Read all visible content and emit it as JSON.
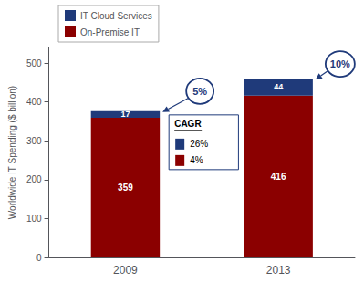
{
  "chart_data": {
    "type": "bar",
    "categories": [
      "2009",
      "2013"
    ],
    "series": [
      {
        "name": "On-Premise IT",
        "color": "#8B0000",
        "values": [
          359,
          416
        ]
      },
      {
        "name": "IT Cloud Services",
        "color": "#1F3A7A",
        "values": [
          17,
          44
        ]
      }
    ],
    "stacked": true,
    "data_labels": true,
    "ylabel": "Worldwide IT Spending ($ billion)",
    "ylim": [
      0,
      540
    ],
    "yticks": [
      0,
      100,
      200,
      300,
      400,
      500
    ],
    "grid": false,
    "legend": "upper left",
    "annotations": [
      {
        "text": "CAGR",
        "color": "#1F3A7A",
        "items": [
          {
            "series": "IT Cloud Services",
            "text": "26%"
          },
          {
            "series": "On-Premise IT",
            "text": "4%"
          }
        ]
      },
      {
        "text": "5%",
        "category": "2009",
        "color": "#1F3A7A"
      },
      {
        "text": "10%",
        "category": "2013",
        "color": "#1F3A7A"
      }
    ]
  }
}
